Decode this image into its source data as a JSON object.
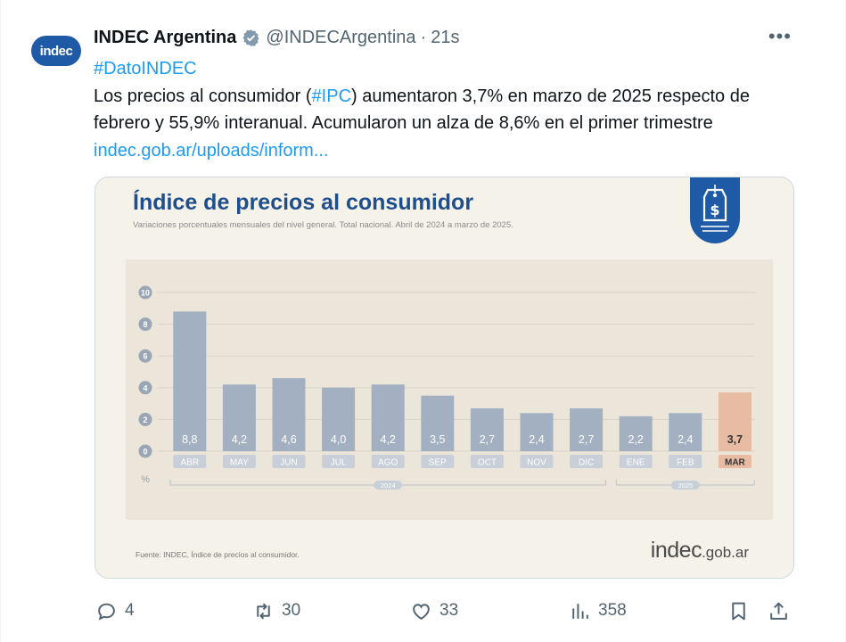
{
  "tweet": {
    "avatar_text": "indec",
    "name": "INDEC Argentina",
    "handle": "@INDECArgentina",
    "separator": "·",
    "time": "21s",
    "more": "•••",
    "hashtag": "#DatoINDEC",
    "text_part1": "Los precios al consumidor (",
    "text_hashtag": "#IPC",
    "text_part2": ") aumentaron 3,7% en marzo de 2025 respecto de febrero y 55,9% interanual. Acumularon un alza de 8,6% en el primer trimestre ",
    "text_link": "indec.gob.ar/uploads/inform..."
  },
  "card": {
    "title": "Índice de precios al consumidor",
    "subtitle": "Variaciones porcentuales mensuales del nivel general. Total nacional. Abril de 2024 a marzo de 2025.",
    "source": "Fuente: INDEC, Índice de precios al consumidor.",
    "brand_main": "indec",
    "brand_suffix": ".gob.ar",
    "tag_icon": "price-tag-dollar-icon"
  },
  "chart_data": {
    "type": "bar",
    "title": "Índice de precios al consumidor",
    "subtitle": "Variaciones porcentuales mensuales del nivel general. Total nacional. Abril de 2024 a marzo de 2025.",
    "categories": [
      "ABR",
      "MAY",
      "JUN",
      "JUL",
      "AGO",
      "SEP",
      "OCT",
      "NOV",
      "DIC",
      "ENE",
      "FEB",
      "MAR"
    ],
    "values": [
      8.8,
      4.2,
      4.6,
      4.0,
      4.2,
      3.5,
      2.7,
      2.4,
      2.7,
      2.2,
      2.4,
      3.7
    ],
    "value_labels": [
      "8,8",
      "4,2",
      "4,6",
      "4,0",
      "4,2",
      "3,5",
      "2,7",
      "2,4",
      "2,7",
      "2,2",
      "2,4",
      "3,7"
    ],
    "year_groups": [
      {
        "label": "2024",
        "from": 0,
        "to": 8
      },
      {
        "label": "2025",
        "from": 9,
        "to": 11
      }
    ],
    "yticks": [
      0,
      2,
      4,
      6,
      8,
      10
    ],
    "ylim": [
      0,
      10
    ],
    "yunit": "%",
    "bar_color": "#a3b0c2",
    "highlight_color": "#e8bba3",
    "highlight_index": 11,
    "grid": true
  },
  "actions": {
    "replies": "4",
    "reposts": "30",
    "likes": "33",
    "views": "358"
  }
}
